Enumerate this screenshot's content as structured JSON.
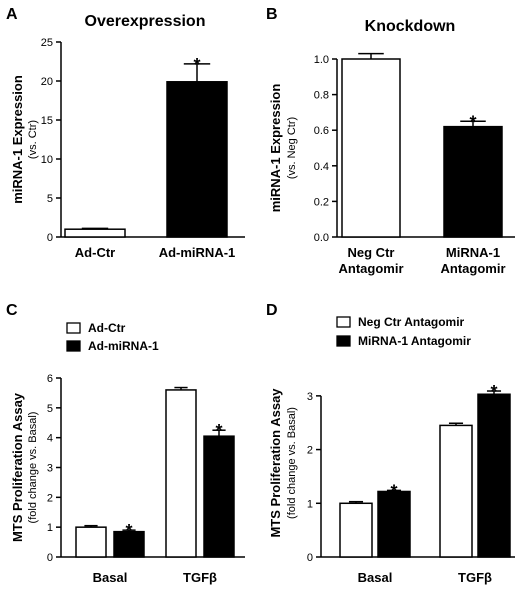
{
  "panels": {
    "A": {
      "label": "A",
      "title": "Overexpression"
    },
    "B": {
      "label": "B",
      "title": "Knockdown"
    },
    "C": {
      "label": "C",
      "title": ""
    },
    "D": {
      "label": "D",
      "title": ""
    }
  },
  "chart_data": [
    {
      "panel": "A",
      "type": "bar",
      "title": "Overexpression",
      "ylabel": "miRNA-1 Expression",
      "ylabel_sub": "(vs. Ctr)",
      "ylim": [
        0,
        25
      ],
      "yticks": [
        0,
        5,
        10,
        15,
        20,
        25
      ],
      "categories": [
        [
          "Ad-Ctr"
        ],
        [
          "Ad-miRNA-1"
        ]
      ],
      "values": [
        1.0,
        19.9
      ],
      "errors": [
        0.1,
        2.3
      ],
      "fills": [
        "#ffffff",
        "#000000"
      ],
      "significant": [
        false,
        true
      ]
    },
    {
      "panel": "B",
      "type": "bar",
      "title": "Knockdown",
      "ylabel": "miRNA-1 Expression",
      "ylabel_sub": "(vs. Neg Ctr)",
      "ylim": [
        0,
        1.0
      ],
      "yticks": [
        0.0,
        0.2,
        0.4,
        0.6,
        0.8,
        1.0
      ],
      "categories": [
        [
          "Neg Ctr",
          "Antagomir"
        ],
        [
          "MiRNA-1",
          "Antagomir"
        ]
      ],
      "values": [
        1.0,
        0.62
      ],
      "errors": [
        0.03,
        0.03
      ],
      "fills": [
        "#ffffff",
        "#000000"
      ],
      "significant": [
        false,
        true
      ]
    },
    {
      "panel": "C",
      "type": "bar",
      "ylabel": "MTS Proliferation Assay",
      "ylabel_sub": "(fold change vs. Basal)",
      "ylim": [
        0,
        6
      ],
      "yticks": [
        0,
        1,
        2,
        3,
        4,
        5,
        6
      ],
      "categories": [
        "Basal",
        "TGFβ"
      ],
      "series": [
        {
          "name": "Ad-Ctr",
          "values": [
            1.0,
            5.6
          ],
          "errors": [
            0.05,
            0.08
          ],
          "fill": "#ffffff",
          "significant": [
            false,
            false
          ]
        },
        {
          "name": "Ad-miRNA-1",
          "values": [
            0.85,
            4.05
          ],
          "errors": [
            0.05,
            0.2
          ],
          "fill": "#000000",
          "significant": [
            true,
            true
          ]
        }
      ],
      "legend": "top-left"
    },
    {
      "panel": "D",
      "type": "bar",
      "ylabel": "MTS Proliferation Assay",
      "ylabel_sub": "(fold change vs. Basal)",
      "ylim": [
        0,
        3.5
      ],
      "yticks": [
        0,
        1,
        2,
        3
      ],
      "categories": [
        "Basal",
        "TGFβ"
      ],
      "series": [
        {
          "name": "Neg Ctr Antagomir",
          "values": [
            1.0,
            2.45
          ],
          "errors": [
            0.03,
            0.04
          ],
          "fill": "#ffffff",
          "significant": [
            false,
            false
          ]
        },
        {
          "name": "MiRNA-1 Antagomir",
          "values": [
            1.22,
            3.03
          ],
          "errors": [
            0.02,
            0.06
          ],
          "fill": "#000000",
          "significant": [
            true,
            true
          ]
        }
      ],
      "legend": "top-left"
    }
  ]
}
